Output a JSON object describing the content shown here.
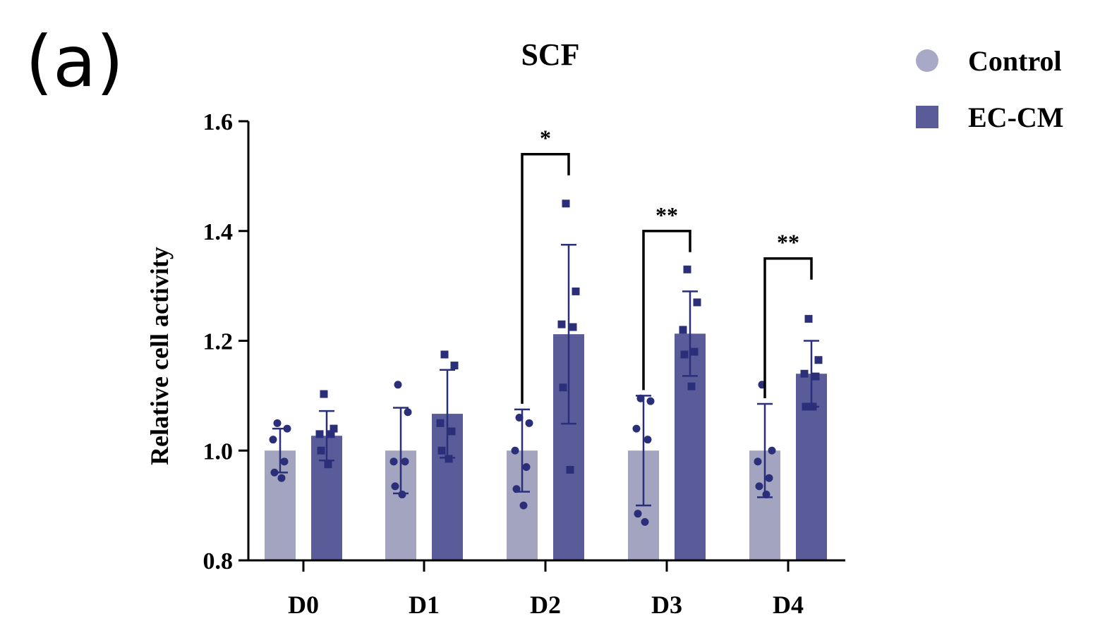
{
  "panel_label": "(a)",
  "chart_data": {
    "type": "bar",
    "title": "SCF",
    "xlabel": "",
    "ylabel": "Relative cell activity",
    "ylim": [
      0.8,
      1.6
    ],
    "yticks": [
      0.8,
      1.0,
      1.2,
      1.4,
      1.6
    ],
    "ytick_labels": [
      "0.8",
      "1.0",
      "1.2",
      "1.4",
      "1.6"
    ],
    "categories": [
      "D0",
      "D1",
      "D2",
      "D3",
      "D4"
    ],
    "legend_position": "top-right",
    "series": [
      {
        "name": "Control",
        "marker": "circle",
        "bar_color": "#a3a4bf",
        "point_color": "#2b2f7a",
        "legend_color": "#a8a9c6",
        "values": [
          1.0,
          1.0,
          1.0,
          1.0,
          1.0
        ],
        "errors": [
          0.04,
          0.078,
          0.075,
          0.1,
          0.085
        ],
        "points": [
          [
            1.05,
            1.04,
            1.02,
            0.98,
            0.96,
            0.95
          ],
          [
            1.12,
            1.07,
            0.98,
            0.98,
            0.935,
            0.92
          ],
          [
            1.06,
            1.05,
            1.0,
            0.97,
            0.93,
            0.9
          ],
          [
            1.095,
            1.09,
            1.04,
            1.02,
            0.885,
            0.87
          ],
          [
            1.12,
            1.0,
            0.98,
            0.95,
            0.935,
            0.92
          ]
        ]
      },
      {
        "name": "EC-CM",
        "marker": "square",
        "bar_color": "#595c99",
        "point_color": "#2b2f7a",
        "legend_color": "#595c99",
        "values": [
          1.027,
          1.067,
          1.212,
          1.213,
          1.14
        ],
        "errors": [
          0.045,
          0.08,
          0.163,
          0.077,
          0.06
        ],
        "points": [
          [
            1.103,
            1.04,
            1.03,
            1.03,
            1.0,
            0.975
          ],
          [
            1.175,
            1.155,
            1.05,
            1.035,
            1.0,
            0.985
          ],
          [
            1.45,
            1.29,
            1.23,
            1.225,
            1.115,
            0.965
          ],
          [
            1.33,
            1.27,
            1.22,
            1.18,
            1.175,
            1.117
          ],
          [
            1.24,
            1.165,
            1.14,
            1.135,
            1.08,
            1.08
          ]
        ]
      }
    ],
    "significance": [
      {
        "category": "D2",
        "label": "*",
        "bracket_y": 1.54
      },
      {
        "category": "D3",
        "label": "**",
        "bracket_y": 1.4
      },
      {
        "category": "D4",
        "label": "**",
        "bracket_y": 1.35
      }
    ]
  }
}
